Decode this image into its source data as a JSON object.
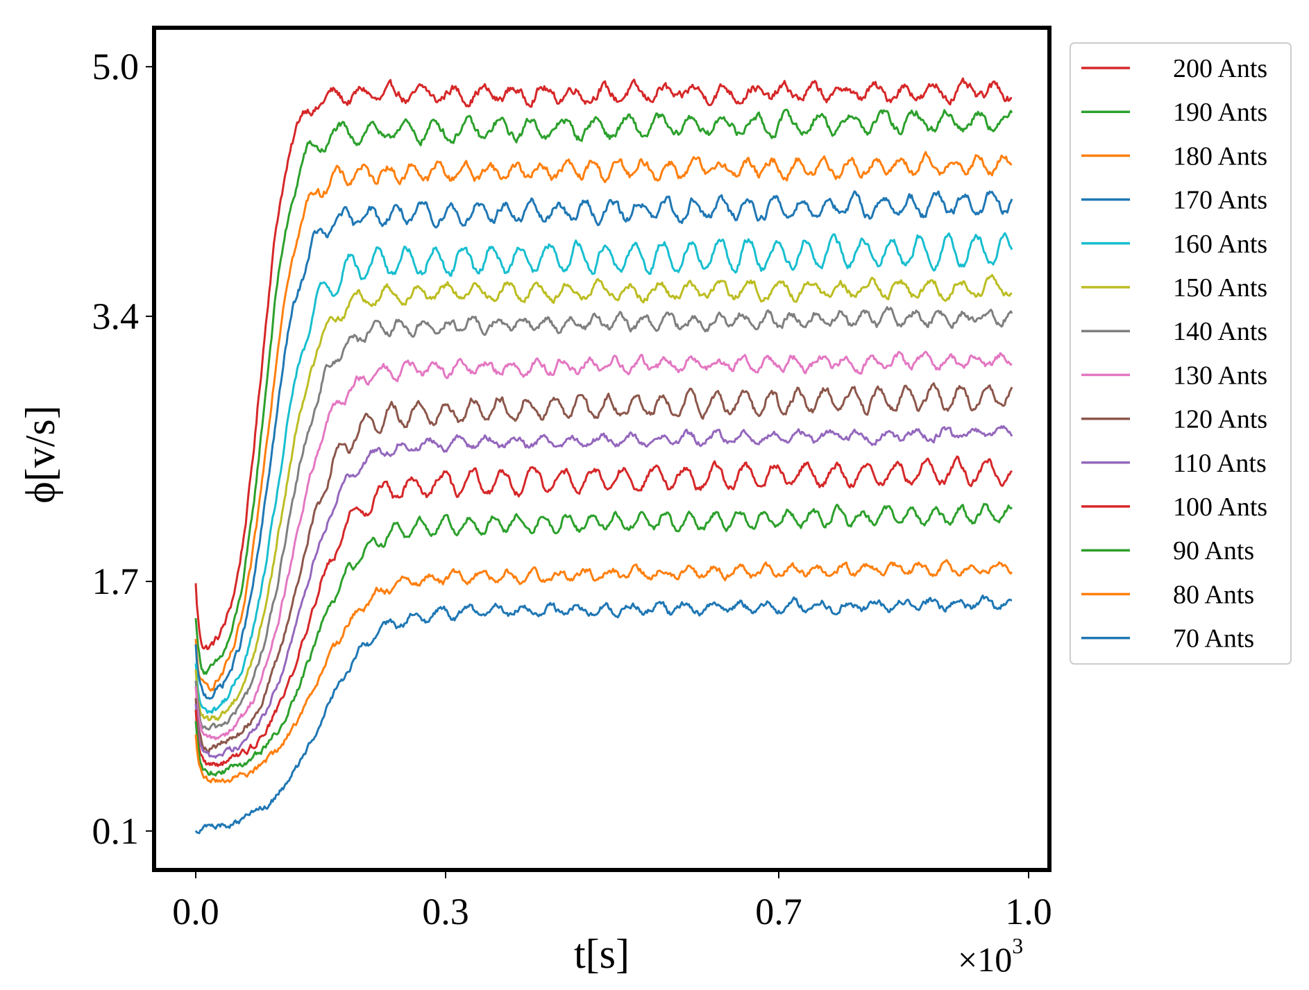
{
  "chart_data": {
    "type": "line",
    "title": "",
    "xlabel": "t[s]",
    "ylabel": "ϕ[v/s]",
    "x_multiplier": "×10",
    "x_multiplier_exponent": "3",
    "xlim": [
      -0.05,
      1.025
    ],
    "ylim": [
      -0.15,
      5.25
    ],
    "x_ticks": [
      0.0,
      0.3,
      0.7,
      1.0
    ],
    "x_tick_labels": [
      "0.0",
      "0.3",
      "0.7",
      "1.0"
    ],
    "y_ticks": [
      0.1,
      1.7,
      3.4,
      5.0
    ],
    "y_tick_labels": [
      "0.1",
      "1.7",
      "3.4",
      "5.0"
    ],
    "x_range": [
      0.0,
      0.98
    ],
    "grid": false,
    "legend_position": "outside-right",
    "series": [
      {
        "name": "200 Ants",
        "color": "#d62728",
        "start": 1.65,
        "min": 1.2,
        "plateau": 4.82,
        "rise_mid": 0.078,
        "rise_width": 0.016,
        "osc_amp": 0.04,
        "noise": 0.022,
        "end": 4.84
      },
      {
        "name": "190 Ants",
        "color": "#2ca02c",
        "start": 1.45,
        "min": 1.05,
        "plateau": 4.58,
        "rise_mid": 0.082,
        "rise_width": 0.017,
        "osc_amp": 0.06,
        "noise": 0.02,
        "end": 4.66
      },
      {
        "name": "180 Ants",
        "color": "#ff7f0e",
        "start": 1.3,
        "min": 0.95,
        "plateau": 4.32,
        "rise_mid": 0.086,
        "rise_width": 0.018,
        "osc_amp": 0.05,
        "noise": 0.02,
        "end": 4.37
      },
      {
        "name": "170 Ants",
        "color": "#1f77b4",
        "start": 1.25,
        "min": 0.9,
        "plateau": 4.05,
        "rise_mid": 0.09,
        "rise_width": 0.019,
        "osc_amp": 0.06,
        "noise": 0.02,
        "end": 4.12
      },
      {
        "name": "160 Ants",
        "color": "#17becf",
        "start": 1.15,
        "min": 0.8,
        "plateau": 3.75,
        "rise_mid": 0.098,
        "rise_width": 0.021,
        "osc_amp": 0.09,
        "noise": 0.018,
        "end": 3.83
      },
      {
        "name": "150 Ants",
        "color": "#bcbd22",
        "start": 1.1,
        "min": 0.75,
        "plateau": 3.55,
        "rise_mid": 0.104,
        "rise_width": 0.022,
        "osc_amp": 0.05,
        "noise": 0.018,
        "end": 3.58
      },
      {
        "name": "140 Ants",
        "color": "#7f7f7f",
        "start": 1.05,
        "min": 0.7,
        "plateau": 3.33,
        "rise_mid": 0.11,
        "rise_width": 0.023,
        "osc_amp": 0.04,
        "noise": 0.018,
        "end": 3.4
      },
      {
        "name": "130 Ants",
        "color": "#e377c2",
        "start": 1.0,
        "min": 0.65,
        "plateau": 3.06,
        "rise_mid": 0.116,
        "rise_width": 0.024,
        "osc_amp": 0.04,
        "noise": 0.018,
        "end": 3.12
      },
      {
        "name": "120 Ants",
        "color": "#8c564b",
        "start": 0.95,
        "min": 0.6,
        "plateau": 2.78,
        "rise_mid": 0.122,
        "rise_width": 0.025,
        "osc_amp": 0.07,
        "noise": 0.018,
        "end": 2.89
      },
      {
        "name": "110 Ants",
        "color": "#9467bd",
        "start": 0.9,
        "min": 0.55,
        "plateau": 2.58,
        "rise_mid": 0.128,
        "rise_width": 0.026,
        "osc_amp": 0.03,
        "noise": 0.016,
        "end": 2.65
      },
      {
        "name": "100 Ants",
        "color": "#d62728",
        "start": 0.85,
        "min": 0.5,
        "plateau": 2.32,
        "rise_mid": 0.134,
        "rise_width": 0.027,
        "osc_amp": 0.07,
        "noise": 0.018,
        "end": 2.41
      },
      {
        "name": "90 Ants",
        "color": "#2ca02c",
        "start": 0.8,
        "min": 0.45,
        "plateau": 2.05,
        "rise_mid": 0.14,
        "rise_width": 0.028,
        "osc_amp": 0.05,
        "noise": 0.016,
        "end": 2.13
      },
      {
        "name": "80 Ants",
        "color": "#ff7f0e",
        "start": 0.7,
        "min": 0.4,
        "plateau": 1.72,
        "rise_mid": 0.146,
        "rise_width": 0.03,
        "osc_amp": 0.03,
        "noise": 0.016,
        "end": 1.79
      },
      {
        "name": "70 Ants",
        "color": "#1f77b4",
        "start": 0.1,
        "min": 0.1,
        "plateau": 1.5,
        "rise_mid": 0.15,
        "rise_width": 0.032,
        "osc_amp": 0.03,
        "noise": 0.016,
        "end": 1.56
      }
    ]
  }
}
